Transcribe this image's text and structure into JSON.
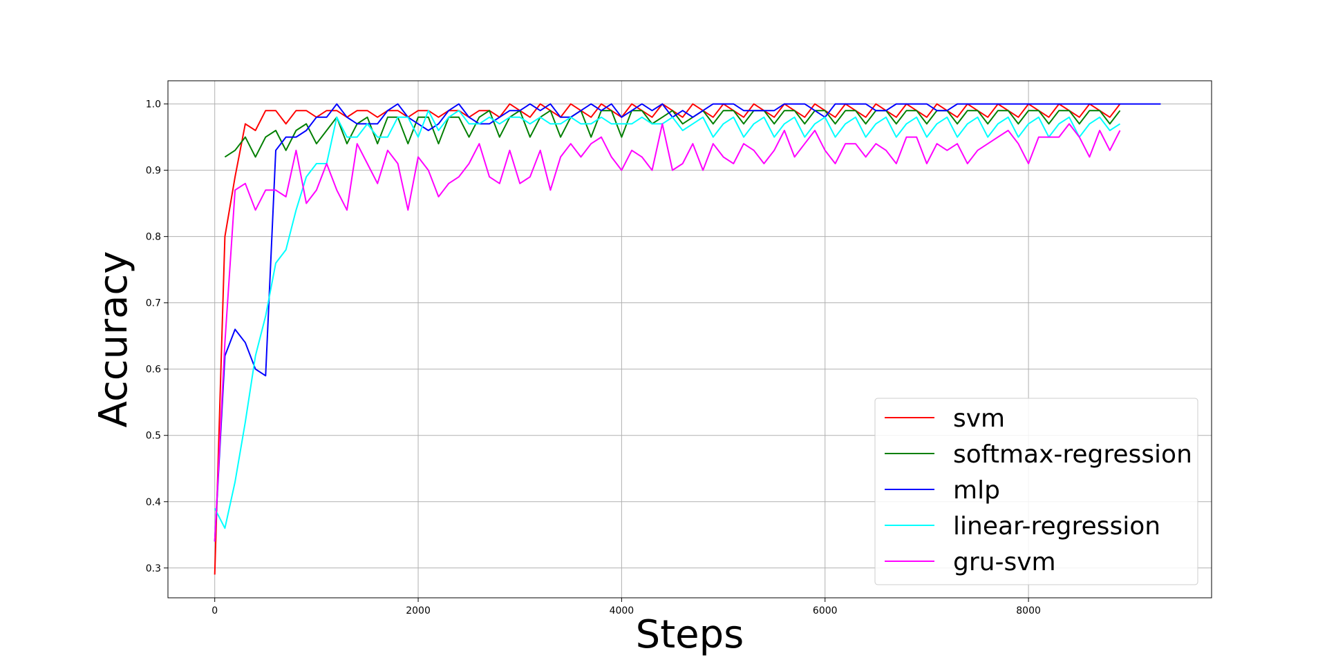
{
  "chart_data": {
    "type": "line",
    "title": "",
    "xlabel": "Steps",
    "ylabel": "Accuracy",
    "xlim": [
      -460,
      9800
    ],
    "ylim": [
      0.255,
      1.035
    ],
    "xticks": [
      0,
      2000,
      4000,
      6000,
      8000
    ],
    "yticks": [
      0.3,
      0.4,
      0.5,
      0.6,
      0.7,
      0.8,
      0.9,
      1.0
    ],
    "grid": true,
    "legend_position": "lower-right",
    "series": [
      {
        "name": "svm",
        "color": "#ff0000",
        "x": [
          0,
          100,
          200,
          300,
          400,
          500,
          600,
          700,
          800,
          900,
          1000,
          1100,
          1200,
          1300,
          1400,
          1500,
          1600,
          1700,
          1800,
          1900,
          2000,
          2100,
          2200,
          2300,
          2400,
          2500,
          2600,
          2700,
          2800,
          2900,
          3000,
          3100,
          3200,
          3300,
          3400,
          3500,
          3600,
          3700,
          3800,
          3900,
          4000,
          4100,
          4200,
          4300,
          4400,
          4500,
          4600,
          4700,
          4800,
          4900,
          5000,
          5100,
          5200,
          5300,
          5400,
          5500,
          5600,
          5700,
          5800,
          5900,
          6000,
          6100,
          6200,
          6300,
          6400,
          6500,
          6600,
          6700,
          6800,
          6900,
          7000,
          7100,
          7200,
          7300,
          7400,
          7500,
          7600,
          7700,
          7800,
          7900,
          8000,
          8100,
          8200,
          8300,
          8400,
          8500,
          8600,
          8700,
          8800,
          8900
        ],
        "values": [
          0.29,
          0.8,
          0.89,
          0.97,
          0.96,
          0.99,
          0.99,
          0.97,
          0.99,
          0.99,
          0.98,
          0.99,
          0.99,
          0.98,
          0.99,
          0.99,
          0.98,
          0.99,
          0.99,
          0.98,
          0.99,
          0.99,
          0.98,
          0.99,
          0.99,
          0.98,
          0.99,
          0.99,
          0.98,
          1.0,
          0.99,
          0.98,
          1.0,
          0.99,
          0.98,
          1.0,
          0.99,
          0.98,
          1.0,
          0.99,
          0.98,
          1.0,
          0.99,
          0.98,
          1.0,
          0.99,
          0.98,
          1.0,
          0.99,
          0.98,
          1.0,
          0.99,
          0.98,
          1.0,
          0.99,
          0.98,
          1.0,
          0.99,
          0.98,
          1.0,
          0.99,
          0.98,
          1.0,
          0.99,
          0.98,
          1.0,
          0.99,
          0.98,
          1.0,
          0.99,
          0.98,
          1.0,
          0.99,
          0.98,
          1.0,
          0.99,
          0.98,
          1.0,
          0.99,
          0.98,
          1.0,
          0.99,
          0.98,
          1.0,
          0.99,
          0.98,
          1.0,
          0.99,
          0.98,
          1.0
        ]
      },
      {
        "name": "softmax-regression",
        "color": "#007f00",
        "x": [
          100,
          200,
          300,
          400,
          500,
          600,
          700,
          800,
          900,
          1000,
          1100,
          1200,
          1300,
          1400,
          1500,
          1600,
          1700,
          1800,
          1900,
          2000,
          2100,
          2200,
          2300,
          2400,
          2500,
          2600,
          2700,
          2800,
          2900,
          3000,
          3100,
          3200,
          3300,
          3400,
          3500,
          3600,
          3700,
          3800,
          3900,
          4000,
          4100,
          4200,
          4300,
          4400,
          4500,
          4600,
          4700,
          4800,
          4900,
          5000,
          5100,
          5200,
          5300,
          5400,
          5500,
          5600,
          5700,
          5800,
          5900,
          6000,
          6100,
          6200,
          6300,
          6400,
          6500,
          6600,
          6700,
          6800,
          6900,
          7000,
          7100,
          7200,
          7300,
          7400,
          7500,
          7600,
          7700,
          7800,
          7900,
          8000,
          8100,
          8200,
          8300,
          8400,
          8500,
          8600,
          8700,
          8800,
          8900
        ],
        "values": [
          0.92,
          0.93,
          0.95,
          0.92,
          0.95,
          0.96,
          0.93,
          0.96,
          0.97,
          0.94,
          0.96,
          0.98,
          0.94,
          0.97,
          0.98,
          0.94,
          0.98,
          0.98,
          0.94,
          0.98,
          0.98,
          0.94,
          0.98,
          0.98,
          0.95,
          0.98,
          0.99,
          0.95,
          0.98,
          0.99,
          0.95,
          0.98,
          0.99,
          0.95,
          0.98,
          0.99,
          0.95,
          0.99,
          0.99,
          0.95,
          0.99,
          0.99,
          0.97,
          0.98,
          0.99,
          0.97,
          0.98,
          0.99,
          0.97,
          0.99,
          0.99,
          0.97,
          0.99,
          0.99,
          0.97,
          0.99,
          0.99,
          0.97,
          0.99,
          0.99,
          0.97,
          0.99,
          0.99,
          0.97,
          0.99,
          0.99,
          0.97,
          0.99,
          0.99,
          0.97,
          0.99,
          0.99,
          0.97,
          0.99,
          0.99,
          0.97,
          0.99,
          0.99,
          0.97,
          0.99,
          0.99,
          0.97,
          0.99,
          0.99,
          0.97,
          0.99,
          0.99,
          0.97,
          0.99
        ]
      },
      {
        "name": "mlp",
        "color": "#0000ff",
        "x": [
          0,
          100,
          200,
          300,
          400,
          500,
          600,
          700,
          800,
          900,
          1000,
          1100,
          1200,
          1300,
          1400,
          1500,
          1600,
          1700,
          1800,
          1900,
          2000,
          2100,
          2200,
          2300,
          2400,
          2500,
          2600,
          2700,
          2800,
          2900,
          3000,
          3100,
          3200,
          3300,
          3400,
          3500,
          3600,
          3700,
          3800,
          3900,
          4000,
          4100,
          4200,
          4300,
          4400,
          4500,
          4600,
          4700,
          4800,
          4900,
          5000,
          5100,
          5200,
          5300,
          5400,
          5500,
          5600,
          5700,
          5800,
          5900,
          6000,
          6100,
          6200,
          6300,
          6400,
          6500,
          6600,
          6700,
          6800,
          6900,
          7000,
          7100,
          7200,
          7300,
          7400,
          7500,
          7600,
          7700,
          7800,
          7900,
          8000,
          8100,
          8200,
          8300,
          8400,
          8500,
          8600,
          8700,
          8800,
          8900,
          9000,
          9100,
          9200,
          9300
        ],
        "values": [
          0.34,
          0.62,
          0.66,
          0.64,
          0.6,
          0.59,
          0.93,
          0.95,
          0.95,
          0.96,
          0.98,
          0.98,
          1.0,
          0.98,
          0.97,
          0.97,
          0.97,
          0.99,
          1.0,
          0.98,
          0.97,
          0.96,
          0.97,
          0.99,
          1.0,
          0.98,
          0.97,
          0.97,
          0.98,
          0.99,
          0.99,
          1.0,
          0.99,
          1.0,
          0.98,
          0.98,
          0.99,
          1.0,
          0.99,
          1.0,
          0.98,
          0.99,
          1.0,
          0.99,
          1.0,
          0.98,
          0.99,
          0.98,
          0.99,
          1.0,
          1.0,
          1.0,
          0.99,
          0.99,
          0.99,
          0.99,
          1.0,
          1.0,
          1.0,
          0.99,
          0.98,
          1.0,
          1.0,
          1.0,
          1.0,
          0.99,
          0.99,
          1.0,
          1.0,
          1.0,
          1.0,
          0.99,
          0.99,
          1.0,
          1.0,
          1.0,
          1.0,
          1.0,
          1.0,
          1.0,
          1.0,
          1.0,
          1.0,
          1.0,
          1.0,
          1.0,
          1.0,
          1.0,
          1.0,
          1.0,
          1.0,
          1.0,
          1.0,
          1.0
        ]
      },
      {
        "name": "linear-regression",
        "color": "#00ffff",
        "x": [
          0,
          100,
          200,
          300,
          400,
          500,
          600,
          700,
          800,
          900,
          1000,
          1100,
          1200,
          1300,
          1400,
          1500,
          1600,
          1700,
          1800,
          1900,
          2000,
          2100,
          2200,
          2300,
          2400,
          2500,
          2600,
          2700,
          2800,
          2900,
          3000,
          3100,
          3200,
          3300,
          3400,
          3500,
          3600,
          3700,
          3800,
          3900,
          4000,
          4100,
          4200,
          4300,
          4400,
          4500,
          4600,
          4700,
          4800,
          4900,
          5000,
          5100,
          5200,
          5300,
          5400,
          5500,
          5600,
          5700,
          5800,
          5900,
          6000,
          6100,
          6200,
          6300,
          6400,
          6500,
          6600,
          6700,
          6800,
          6900,
          7000,
          7100,
          7200,
          7300,
          7400,
          7500,
          7600,
          7700,
          7800,
          7900,
          8000,
          8100,
          8200,
          8300,
          8400,
          8500,
          8600,
          8700,
          8800,
          8900
        ],
        "values": [
          0.39,
          0.36,
          0.43,
          0.52,
          0.62,
          0.68,
          0.76,
          0.78,
          0.84,
          0.89,
          0.91,
          0.91,
          0.98,
          0.95,
          0.95,
          0.97,
          0.95,
          0.95,
          0.98,
          0.98,
          0.95,
          0.99,
          0.96,
          0.98,
          0.99,
          0.97,
          0.97,
          0.98,
          0.97,
          0.98,
          0.98,
          0.97,
          0.98,
          0.97,
          0.97,
          0.98,
          0.97,
          0.97,
          0.98,
          0.97,
          0.97,
          0.97,
          0.98,
          0.97,
          0.97,
          0.98,
          0.96,
          0.97,
          0.98,
          0.95,
          0.97,
          0.98,
          0.95,
          0.97,
          0.98,
          0.95,
          0.97,
          0.98,
          0.95,
          0.97,
          0.98,
          0.95,
          0.97,
          0.98,
          0.95,
          0.97,
          0.98,
          0.95,
          0.97,
          0.98,
          0.95,
          0.97,
          0.98,
          0.95,
          0.97,
          0.98,
          0.95,
          0.97,
          0.98,
          0.95,
          0.97,
          0.98,
          0.95,
          0.97,
          0.98,
          0.95,
          0.97,
          0.98,
          0.96,
          0.97
        ]
      },
      {
        "name": "gru-svm",
        "color": "#ff00ff",
        "x": [
          0,
          100,
          200,
          300,
          400,
          500,
          600,
          700,
          800,
          900,
          1000,
          1100,
          1200,
          1300,
          1400,
          1500,
          1600,
          1700,
          1800,
          1900,
          2000,
          2100,
          2200,
          2300,
          2400,
          2500,
          2600,
          2700,
          2800,
          2900,
          3000,
          3100,
          3200,
          3300,
          3400,
          3500,
          3600,
          3700,
          3800,
          3900,
          4000,
          4100,
          4200,
          4300,
          4400,
          4500,
          4600,
          4700,
          4800,
          4900,
          5000,
          5100,
          5200,
          5300,
          5400,
          5500,
          5600,
          5700,
          5800,
          5900,
          6000,
          6100,
          6200,
          6300,
          6400,
          6500,
          6600,
          6700,
          6800,
          6900,
          7000,
          7100,
          7200,
          7300,
          7400,
          7500,
          7600,
          7700,
          7800,
          7900,
          8000,
          8100,
          8200,
          8300,
          8400,
          8500,
          8600,
          8700,
          8800,
          8900
        ],
        "values": [
          0.34,
          0.64,
          0.87,
          0.88,
          0.84,
          0.87,
          0.87,
          0.86,
          0.93,
          0.85,
          0.87,
          0.91,
          0.87,
          0.84,
          0.94,
          0.91,
          0.88,
          0.93,
          0.91,
          0.84,
          0.92,
          0.9,
          0.86,
          0.88,
          0.89,
          0.91,
          0.94,
          0.89,
          0.88,
          0.93,
          0.88,
          0.89,
          0.93,
          0.87,
          0.92,
          0.94,
          0.92,
          0.94,
          0.95,
          0.92,
          0.9,
          0.93,
          0.92,
          0.9,
          0.97,
          0.9,
          0.91,
          0.94,
          0.9,
          0.94,
          0.92,
          0.91,
          0.94,
          0.93,
          0.91,
          0.93,
          0.96,
          0.92,
          0.94,
          0.96,
          0.93,
          0.91,
          0.94,
          0.94,
          0.92,
          0.94,
          0.93,
          0.91,
          0.95,
          0.95,
          0.91,
          0.94,
          0.93,
          0.94,
          0.91,
          0.93,
          0.94,
          0.95,
          0.96,
          0.94,
          0.91,
          0.95,
          0.95,
          0.95,
          0.97,
          0.95,
          0.92,
          0.96,
          0.93,
          0.96
        ]
      }
    ]
  }
}
